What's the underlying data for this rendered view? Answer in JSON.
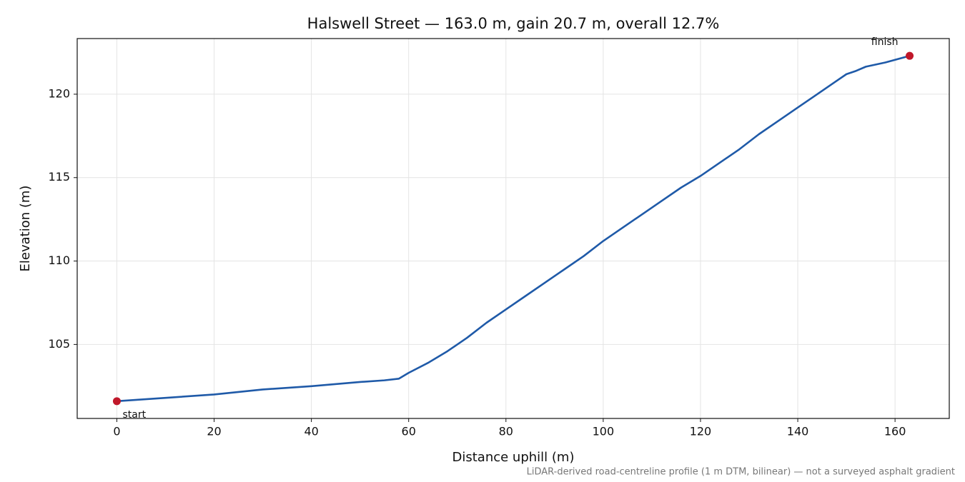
{
  "chart_data": {
    "type": "line",
    "title": "Halswell Street — 163.0 m, gain 20.7 m, overall 12.7%",
    "x_label": "Distance uphill (m)",
    "y_label": "Elevation (m)",
    "footnote": "LiDAR-derived road-centreline profile (1 m DTM, bilinear) — not a surveyed asphalt gradient",
    "x": [
      0,
      10,
      20,
      30,
      40,
      50,
      55,
      58,
      60,
      64,
      68,
      72,
      76,
      80,
      84,
      88,
      92,
      96,
      100,
      104,
      108,
      112,
      116,
      120,
      124,
      128,
      132,
      136,
      140,
      144,
      148,
      150,
      152,
      154,
      158,
      163
    ],
    "series": [
      {
        "color": "#1f5aa8",
        "values": [
          101.6,
          101.8,
          102.0,
          102.3,
          102.5,
          102.75,
          102.85,
          102.95,
          103.3,
          103.9,
          104.6,
          105.4,
          106.3,
          107.1,
          107.9,
          108.7,
          109.5,
          110.3,
          111.2,
          112.0,
          112.8,
          113.6,
          114.4,
          115.1,
          115.9,
          116.7,
          117.6,
          118.4,
          119.2,
          120.0,
          120.8,
          121.2,
          121.4,
          121.65,
          121.9,
          122.3
        ]
      }
    ],
    "markers": {
      "color": "#c0182a",
      "x": [
        0,
        163
      ],
      "values": [
        101.6,
        122.3
      ],
      "labels": [
        "start",
        "finish"
      ]
    },
    "xlim": [
      -8.15,
      171.15
    ],
    "ylim": [
      100.565,
      123.335
    ],
    "xticks": [
      0,
      20,
      40,
      60,
      80,
      100,
      120,
      140,
      160
    ],
    "yticks": [
      105,
      110,
      115,
      120
    ],
    "grid": true
  }
}
